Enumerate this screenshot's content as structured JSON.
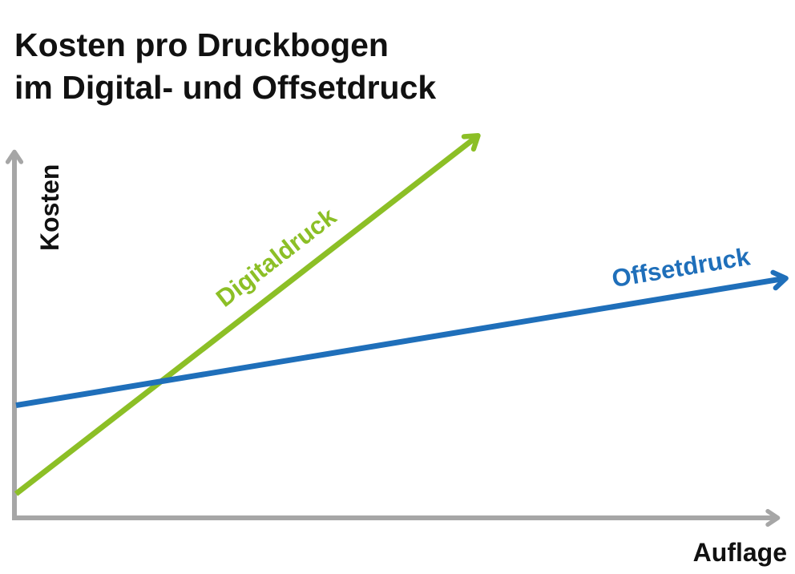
{
  "chart_data": {
    "type": "line",
    "title": [
      "Kosten pro Druckbogen",
      "im Digital- und Offsetdruck"
    ],
    "xlabel": "Auflage",
    "ylabel": "Kosten",
    "grid": false,
    "xlim": [
      0,
      100
    ],
    "ylim": [
      0,
      100
    ],
    "colors": {
      "axis": "#a6a6a6",
      "text": "#111111"
    },
    "series": [
      {
        "name": "Digitaldruck",
        "color": "#8cbf26",
        "x": [
          0,
          60
        ],
        "y": [
          5,
          98
        ]
      },
      {
        "name": "Offsetdruck",
        "color": "#1f6fba",
        "x": [
          0,
          100
        ],
        "y": [
          28,
          61
        ]
      }
    ]
  }
}
